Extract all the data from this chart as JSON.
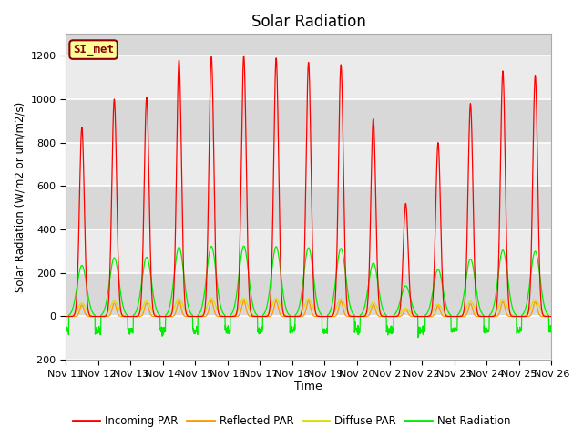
{
  "title": "Solar Radiation",
  "xlabel": "Time",
  "ylabel": "Solar Radiation (W/m2 or um/m2/s)",
  "ylim": [
    -200,
    1300
  ],
  "yticks": [
    -200,
    0,
    200,
    400,
    600,
    800,
    1000,
    1200
  ],
  "n_days": 15,
  "xtick_labels": [
    "Nov 11",
    "Nov 12",
    "Nov 13",
    "Nov 14",
    "Nov 15",
    "Nov 16",
    "Nov 17",
    "Nov 18",
    "Nov 19",
    "Nov 20",
    "Nov 21",
    "Nov 22",
    "Nov 23",
    "Nov 24",
    "Nov 25",
    "Nov 26"
  ],
  "colors": {
    "incoming": "#ff0000",
    "reflected": "#ff9900",
    "diffuse": "#dddd00",
    "net": "#00ee00",
    "fig_bg": "#ffffff",
    "plot_bg": "#d8d8d8",
    "label_bg": "#ffff99",
    "label_border": "#880000",
    "label_text": "#880000",
    "grid": "#ffffff",
    "band_color": "#e8e8e8"
  },
  "legend_entries": [
    "Incoming PAR",
    "Reflected PAR",
    "Diffuse PAR",
    "Net Radiation"
  ],
  "label_text": "SI_met",
  "incoming_peaks": [
    870,
    1000,
    1010,
    1180,
    1195,
    1200,
    1190,
    1170,
    1160,
    910,
    520,
    800,
    980,
    1130,
    1110
  ],
  "night_net": -65,
  "incoming_hw": 1.8,
  "net_hw": 3.5,
  "diffuse_hw": 3.0,
  "reflected_hw": 1.5
}
